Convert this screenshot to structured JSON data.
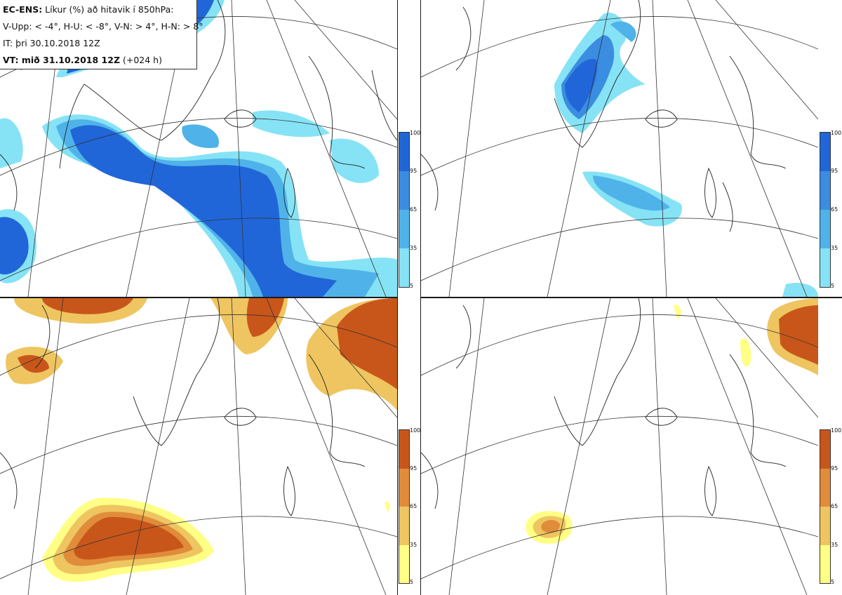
{
  "header": {
    "line1_bold": "EC-ENS:",
    "line1_rest": " Líkur (%) að hitavik í 850hPa:",
    "line2": "V-Upp: < -4°, H-U: < -8°, V-N: > 4°, H-N: > 8°",
    "line3": "IT: þri 30.10.2018 12Z",
    "line4_bold": "VT: mið 31.10.2018 12Z",
    "line4_rest": " (+024 h)"
  },
  "colorbar_ticks": [
    "100",
    "95",
    "65",
    "35",
    "5"
  ],
  "colors": {
    "blue_scale": [
      "#2166d8",
      "#3a8de0",
      "#4fb3ea",
      "#86e3f5"
    ],
    "orange_scale": [
      "#c8561a",
      "#e08c3a",
      "#eec560",
      "#ffff85"
    ]
  },
  "panels": [
    {
      "id": "V-Upp",
      "scale": "blue"
    },
    {
      "id": "H-U",
      "scale": "blue"
    },
    {
      "id": "V-N",
      "scale": "orange"
    },
    {
      "id": "H-N",
      "scale": "orange"
    }
  ]
}
